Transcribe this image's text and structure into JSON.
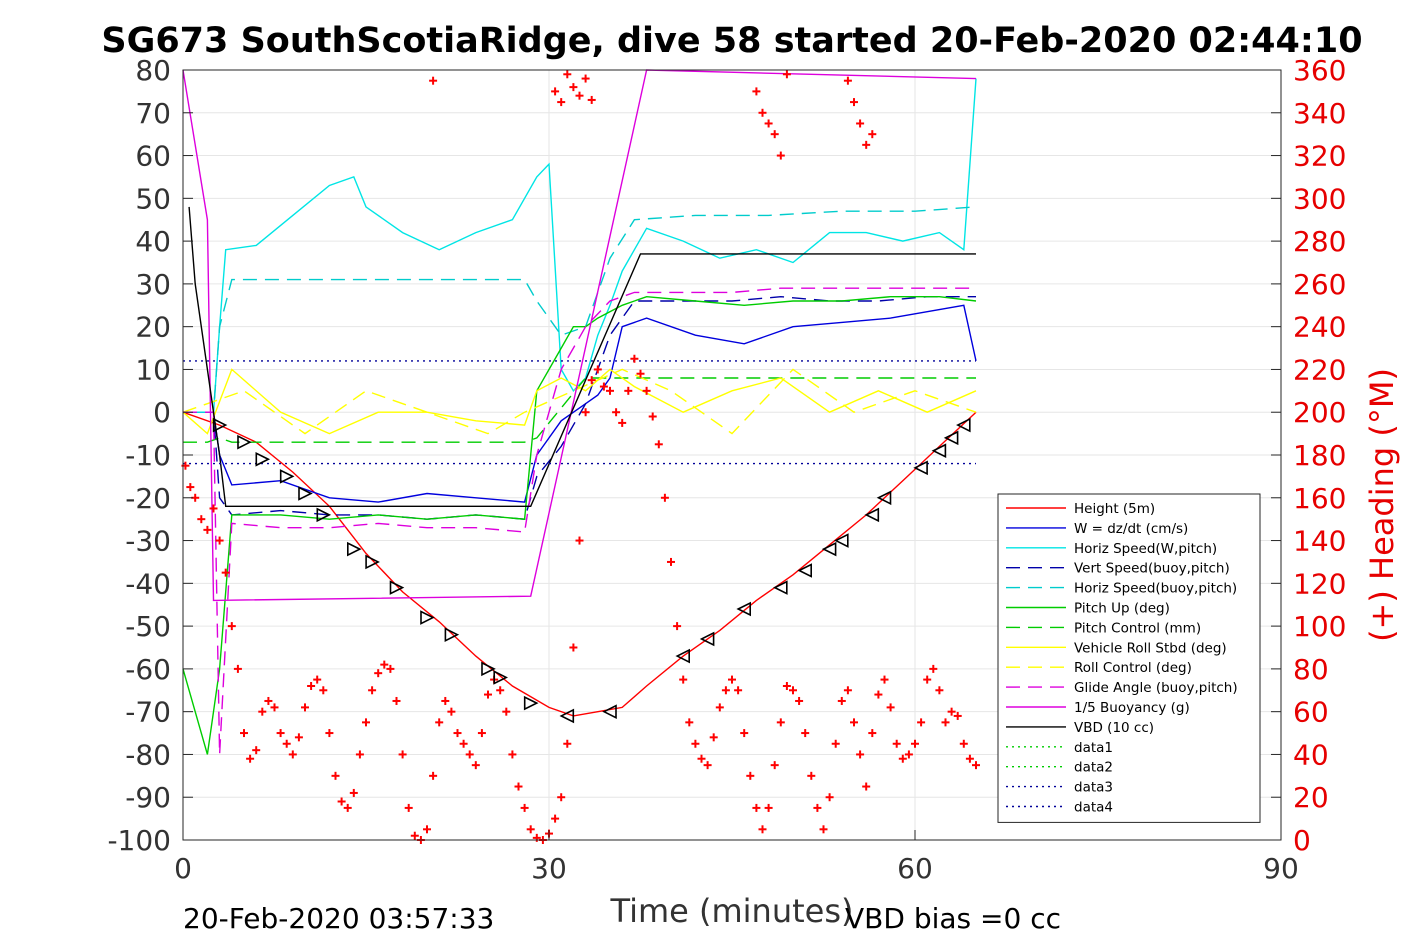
{
  "chart_data": {
    "type": "line",
    "title": "SG673 SouthScotiaRidge, dive 58 started 20-Feb-2020 02:44:10",
    "xlabel": "Time (minutes)",
    "ylabel": "",
    "y2label": "(+) Heading (°M)",
    "xlim": [
      0,
      90
    ],
    "ylim": [
      -100,
      80
    ],
    "y2lim": [
      0,
      360
    ],
    "xticks": [
      "0",
      "30",
      "60",
      "90"
    ],
    "yticks": [
      "-100",
      "-90",
      "-80",
      "-70",
      "-60",
      "-50",
      "-40",
      "-30",
      "-20",
      "-10",
      "0",
      "10",
      "20",
      "30",
      "40",
      "50",
      "60",
      "70",
      "80"
    ],
    "y2ticks": [
      "0",
      "20",
      "40",
      "60",
      "80",
      "100",
      "120",
      "140",
      "160",
      "180",
      "200",
      "220",
      "240",
      "260",
      "280",
      "300",
      "320",
      "340",
      "360"
    ],
    "grid": true,
    "legend_position": "bottom-right",
    "footer_left": "20-Feb-2020 03:57:33",
    "footer_right": "VBD bias =0 cc",
    "series": [
      {
        "name": "Height (5m)",
        "color": "#ff0000",
        "style": "solid",
        "x": [
          0,
          3,
          6,
          9,
          12,
          15,
          18,
          21,
          24,
          27,
          30,
          32,
          34,
          36,
          38,
          41,
          44,
          47,
          50,
          53,
          56,
          59,
          62,
          65
        ],
        "y": [
          0,
          -3,
          -7,
          -14,
          -22,
          -33,
          -42,
          -49,
          -57,
          -64,
          -69,
          -71,
          -70,
          -69,
          -64,
          -57,
          -51,
          -44,
          -38,
          -31,
          -24,
          -16,
          -8,
          0
        ]
      },
      {
        "name": "W = dz/dt (cm/s)",
        "color": "#0000dd",
        "style": "solid",
        "x": [
          0,
          2.5,
          3,
          4,
          8,
          12,
          16,
          20,
          24,
          28,
          29,
          31,
          33,
          34,
          35,
          36,
          38,
          42,
          46,
          50,
          54,
          58,
          62,
          64,
          65
        ],
        "y": [
          0,
          0,
          -10,
          -17,
          -16,
          -20,
          -21,
          -19,
          -20,
          -21,
          -10,
          -2,
          2,
          4,
          8,
          20,
          22,
          18,
          16,
          20,
          21,
          22,
          24,
          25,
          12
        ]
      },
      {
        "name": "Horiz Speed(W,pitch)",
        "color": "#00e5e5",
        "style": "solid",
        "x": [
          0,
          2.5,
          3,
          3.5,
          6,
          9,
          12,
          14,
          15,
          18,
          21,
          24,
          27,
          29,
          30,
          31,
          32,
          33,
          34,
          35,
          36,
          38,
          41,
          44,
          47,
          50,
          53,
          56,
          59,
          62,
          64,
          65
        ],
        "y": [
          0,
          0,
          20,
          38,
          39,
          46,
          53,
          55,
          48,
          42,
          38,
          42,
          45,
          55,
          58,
          10,
          5,
          8,
          18,
          25,
          33,
          43,
          40,
          36,
          38,
          35,
          42,
          42,
          40,
          42,
          38,
          78
        ]
      },
      {
        "name": "Vert Speed(buoy,pitch)",
        "color": "#0000aa",
        "style": "dash",
        "x": [
          0,
          2.5,
          3,
          4,
          8,
          12,
          16,
          20,
          24,
          28,
          29,
          31,
          33,
          35,
          37,
          41,
          45,
          49,
          53,
          57,
          61,
          65
        ],
        "y": [
          0,
          0,
          -20,
          -24,
          -23,
          -24,
          -24,
          -25,
          -24,
          -25,
          -15,
          -8,
          2,
          18,
          26,
          26,
          26,
          27,
          26,
          26,
          27,
          27
        ]
      },
      {
        "name": "Horiz Speed(buoy,pitch)",
        "color": "#00cccc",
        "style": "dash",
        "x": [
          0,
          2.5,
          3,
          4,
          10,
          16,
          22,
          28,
          29,
          31,
          33,
          35,
          37,
          42,
          48,
          54,
          60,
          65
        ],
        "y": [
          0,
          0,
          20,
          31,
          31,
          31,
          31,
          31,
          26,
          18,
          20,
          36,
          45,
          46,
          46,
          47,
          47,
          48
        ]
      },
      {
        "name": "Pitch Up (deg)",
        "color": "#00cc00",
        "style": "solid",
        "x": [
          0,
          0.5,
          1,
          1.5,
          2,
          2.5,
          3,
          4,
          8,
          12,
          16,
          20,
          24,
          28,
          29,
          31,
          32,
          33,
          34,
          36,
          38,
          42,
          46,
          50,
          54,
          58,
          62,
          65
        ],
        "y": [
          -60,
          -65,
          -70,
          -75,
          -80,
          -70,
          -60,
          -24,
          -24,
          -25,
          -24,
          -25,
          -24,
          -25,
          5,
          15,
          20,
          20,
          22,
          25,
          27,
          26,
          25,
          26,
          26,
          27,
          27,
          26
        ]
      },
      {
        "name": "Pitch Control (mm)",
        "color": "#00cc00",
        "style": "dash",
        "x": [
          0,
          2,
          3,
          4,
          28,
          29,
          33,
          34,
          40,
          65
        ],
        "y": [
          -7,
          -7,
          -6,
          -7,
          -7,
          -6,
          8,
          8,
          8,
          8
        ]
      },
      {
        "name": "Vehicle Roll Stbd (deg)",
        "color": "#ffff00",
        "style": "solid",
        "x": [
          0,
          2,
          4,
          8,
          12,
          16,
          20,
          24,
          28,
          29,
          31,
          33,
          35,
          37,
          41,
          45,
          49,
          53,
          57,
          61,
          65
        ],
        "y": [
          0,
          -5,
          10,
          0,
          -5,
          0,
          0,
          -2,
          -3,
          5,
          8,
          5,
          10,
          6,
          0,
          5,
          8,
          0,
          5,
          0,
          5
        ]
      },
      {
        "name": "Roll Control (deg)",
        "color": "#ffff00",
        "style": "dash",
        "x": [
          0,
          5,
          10,
          15,
          20,
          25,
          28,
          32,
          36,
          40,
          45,
          50,
          55,
          60,
          65
        ],
        "y": [
          0,
          5,
          -5,
          5,
          0,
          -5,
          0,
          5,
          10,
          5,
          -5,
          10,
          0,
          5,
          0
        ]
      },
      {
        "name": "Glide Angle (buoy,pitch)",
        "color": "#dd00dd",
        "style": "dash",
        "x": [
          0,
          2.5,
          3,
          4,
          8,
          12,
          16,
          20,
          24,
          28,
          29,
          31,
          33,
          35,
          37,
          41,
          45,
          49,
          53,
          57,
          61,
          65
        ],
        "y": [
          0,
          0,
          -80,
          -26,
          -27,
          -27,
          -26,
          -27,
          -27,
          -28,
          -10,
          10,
          20,
          26,
          28,
          28,
          28,
          29,
          29,
          29,
          29,
          29
        ]
      },
      {
        "name": "1/5 Buoyancy (g)",
        "color": "#dd00dd",
        "style": "solid",
        "x": [
          0,
          2,
          2.5,
          28.5,
          38,
          65
        ],
        "y": [
          80,
          45,
          -44,
          -43,
          80,
          78
        ]
      },
      {
        "name": "VBD (10 cc)",
        "color": "#000000",
        "style": "solid",
        "x": [
          0.5,
          1,
          2,
          3,
          3.5,
          28.5,
          37.5,
          65
        ],
        "y": [
          48,
          30,
          10,
          -10,
          -22,
          -22,
          37,
          37
        ]
      },
      {
        "name": "data1",
        "color": "#00cc00",
        "style": "dot",
        "x": [],
        "y": []
      },
      {
        "name": "data2",
        "color": "#00cc00",
        "style": "dot",
        "x": [],
        "y": []
      },
      {
        "name": "data3",
        "color": "#000099",
        "style": "dot",
        "x": [
          0,
          65
        ],
        "y": [
          -12,
          -12
        ]
      },
      {
        "name": "data4",
        "color": "#000099",
        "style": "dot",
        "x": [
          0,
          65
        ],
        "y": [
          12,
          12
        ]
      }
    ],
    "heading_series": {
      "color": "#ff0000",
      "marker": "+",
      "axis": "right",
      "x": [
        0.2,
        0.6,
        1,
        1.5,
        2,
        2.5,
        3,
        3.5,
        4,
        4.5,
        5,
        5.5,
        6,
        6.5,
        7,
        7.5,
        8,
        8.5,
        9,
        9.5,
        10,
        10.5,
        11,
        11.5,
        12,
        12.5,
        13,
        13.5,
        14,
        14.5,
        15,
        15.5,
        16,
        16.5,
        17,
        17.5,
        18,
        18.5,
        19,
        19.5,
        20,
        20.5,
        21,
        21.5,
        22,
        22.5,
        23,
        23.5,
        24,
        24.5,
        25,
        25.5,
        26,
        26.5,
        27,
        27.5,
        28,
        28.5,
        29,
        29.5,
        30,
        30.5,
        31,
        31.5,
        32,
        32.5,
        33,
        33.5,
        34,
        34.5,
        35,
        35.5,
        36,
        36.5,
        37,
        37.5,
        38,
        38.5,
        39,
        39.5,
        40,
        40.5,
        41,
        41.5,
        42,
        42.5,
        43,
        43.5,
        44,
        44.5,
        45,
        45.5,
        46,
        46.5,
        47,
        47.5,
        48,
        48.5,
        49,
        49.5,
        50,
        50.5,
        51,
        51.5,
        52,
        52.5,
        53,
        53.5,
        54,
        54.5,
        55,
        55.5,
        56,
        56.5,
        57,
        57.5,
        58,
        58.5,
        59,
        59.5,
        60,
        60.5,
        61,
        61.5,
        62,
        62.5,
        63,
        63.5,
        64,
        64.5,
        65
      ],
      "y": [
        175,
        165,
        160,
        150,
        145,
        155,
        140,
        125,
        100,
        80,
        50,
        38,
        42,
        60,
        65,
        62,
        50,
        45,
        40,
        48,
        62,
        72,
        75,
        70,
        50,
        30,
        18,
        15,
        22,
        40,
        55,
        70,
        78,
        82,
        80,
        65,
        40,
        15,
        2,
        0,
        5,
        30,
        55,
        65,
        60,
        50,
        45,
        40,
        35,
        50,
        68,
        75,
        70,
        60,
        40,
        25,
        15,
        5,
        1,
        0,
        3,
        10,
        20,
        45,
        90,
        140,
        200,
        215,
        220,
        212,
        210,
        200,
        195,
        210,
        225,
        218,
        210,
        198,
        185,
        160,
        130,
        100,
        75,
        55,
        45,
        38,
        35,
        48,
        62,
        70,
        75,
        70,
        50,
        30,
        15,
        5,
        15,
        35,
        55,
        72,
        70,
        65,
        50,
        30,
        15,
        5,
        20,
        45,
        65,
        70,
        55,
        40,
        25,
        50,
        68,
        75,
        62,
        45,
        38,
        40,
        45,
        55,
        75,
        80,
        70,
        55,
        60,
        58,
        45,
        38,
        35
      ]
    },
    "heading_scatter_top": {
      "x": [
        20.5,
        30.5,
        31,
        31.5,
        32,
        32.5,
        33,
        33.5,
        47,
        47.5,
        48,
        48.5,
        49,
        49.5,
        54.5,
        55,
        55.5,
        56,
        56.5
      ],
      "y": [
        355,
        350,
        345,
        358,
        352,
        348,
        356,
        346,
        350,
        340,
        335,
        330,
        320,
        358,
        355,
        345,
        335,
        325,
        330
      ]
    },
    "marker_points": {
      "marker": "triangle",
      "color": "#000000",
      "x": [
        3,
        5,
        6.5,
        8.5,
        10,
        11.5,
        14,
        15.5,
        17.5,
        20,
        22,
        25,
        26,
        28.5,
        31.5,
        35,
        41,
        43,
        46,
        49,
        51,
        53,
        54,
        56.5,
        57.5,
        60.5,
        62,
        63,
        64
      ],
      "y": [
        -3,
        -7,
        -11,
        -15,
        -19,
        -24,
        -32,
        -35,
        -41,
        -48,
        -52,
        -60,
        -62,
        -68,
        -71,
        -70,
        -57,
        -53,
        -46,
        -41,
        -37,
        -32,
        -30,
        -24,
        -20,
        -13,
        -9,
        -6,
        -3
      ]
    }
  }
}
